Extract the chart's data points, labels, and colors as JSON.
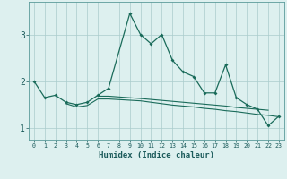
{
  "xlabel": "Humidex (Indice chaleur)",
  "x_values": [
    0,
    1,
    2,
    3,
    4,
    5,
    6,
    7,
    8,
    9,
    10,
    11,
    12,
    13,
    14,
    15,
    16,
    17,
    18,
    19,
    20,
    21,
    22,
    23
  ],
  "line1_y": [
    2.0,
    1.65,
    1.7,
    1.55,
    1.5,
    1.55,
    1.7,
    1.85,
    null,
    3.45,
    3.0,
    2.8,
    3.0,
    2.45,
    2.2,
    2.1,
    1.75,
    1.75,
    2.35,
    1.65,
    1.5,
    1.4,
    1.05,
    1.25
  ],
  "line2_y": [
    null,
    null,
    null,
    1.52,
    1.45,
    1.48,
    1.62,
    1.62,
    null,
    null,
    1.58,
    1.55,
    1.52,
    1.49,
    1.47,
    1.45,
    1.42,
    1.4,
    1.37,
    1.35,
    1.32,
    1.29,
    1.27,
    1.24
  ],
  "line3_y": [
    null,
    null,
    null,
    null,
    null,
    null,
    1.68,
    1.68,
    null,
    null,
    1.63,
    1.61,
    1.59,
    1.57,
    1.55,
    1.53,
    1.51,
    1.49,
    1.47,
    1.44,
    1.42,
    1.4,
    1.38,
    null
  ],
  "line_color": "#1a6b5a",
  "bg_color": "#ddf0ef",
  "grid_color": "#aacccc",
  "ylim": [
    0.75,
    3.7
  ],
  "yticks": [
    1,
    2,
    3
  ],
  "xlim": [
    -0.5,
    23.5
  ]
}
